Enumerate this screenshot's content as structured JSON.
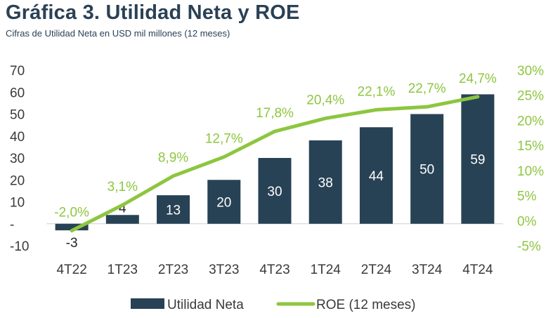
{
  "title": "Gráfica 3. Utilidad Neta y ROE",
  "subtitle": "Cifras de Utilidad Neta en USD mil millones (12 meses)",
  "chart_data": {
    "type": "bar",
    "categories": [
      "4T22",
      "1T23",
      "2T23",
      "3T23",
      "4T23",
      "1T24",
      "2T24",
      "3T24",
      "4T24"
    ],
    "series": [
      {
        "name": "Utilidad Neta",
        "type": "bar",
        "axis": "left",
        "color": "#284255",
        "values": [
          -3,
          4,
          13,
          20,
          30,
          38,
          44,
          50,
          59
        ],
        "labels": [
          "-3",
          "4",
          "13",
          "20",
          "30",
          "38",
          "44",
          "50",
          "59"
        ]
      },
      {
        "name": "ROE (12 meses)",
        "type": "line",
        "axis": "right",
        "color": "#8dc63f",
        "values": [
          -2.0,
          3.1,
          8.9,
          12.7,
          17.8,
          20.4,
          22.1,
          22.7,
          24.7
        ],
        "labels": [
          "-2,0%",
          "3,1%",
          "8,9%",
          "12,7%",
          "17,8%",
          "20,4%",
          "22,1%",
          "22,7%",
          "24,7%"
        ]
      }
    ],
    "y_left": {
      "ylim": [
        -10,
        70
      ],
      "ticks": [
        -10,
        0,
        10,
        20,
        30,
        40,
        50,
        60,
        70
      ],
      "tick_labels": [
        "-10",
        "-",
        "10",
        "20",
        "30",
        "40",
        "50",
        "60",
        "70"
      ]
    },
    "y_right": {
      "ylim": [
        -5,
        30
      ],
      "ticks": [
        -5,
        0,
        5,
        10,
        15,
        20,
        25,
        30
      ],
      "tick_labels": [
        "-5%",
        "0%",
        "5%",
        "10%",
        "15%",
        "20%",
        "25%",
        "30%"
      ]
    },
    "grid": false,
    "legend_position": "bottom"
  }
}
